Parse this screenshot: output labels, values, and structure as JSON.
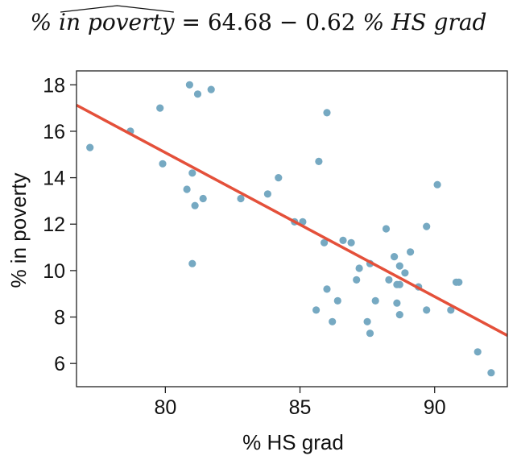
{
  "chart_data": {
    "type": "scatter",
    "title": {
      "lhs_prefix": "% ",
      "lhs_hat": "in poverty",
      "equals": " = ",
      "intercept": "64.68",
      "minus": " − ",
      "slope": "0.62",
      "rhs": " % HS grad"
    },
    "xlabel": "% HS grad",
    "ylabel": "% in poverty",
    "xlim": [
      76.7,
      92.7
    ],
    "ylim": [
      5.0,
      18.6
    ],
    "xticks": [
      80,
      85,
      90
    ],
    "yticks": [
      6,
      8,
      10,
      12,
      14,
      16,
      18
    ],
    "grid": false,
    "regression": {
      "intercept": 64.68,
      "slope": -0.62
    },
    "colors": {
      "points": "#76a9c2",
      "line": "#e4503a"
    },
    "points": [
      {
        "x": 77.2,
        "y": 15.3
      },
      {
        "x": 78.7,
        "y": 16.0
      },
      {
        "x": 79.8,
        "y": 17.0
      },
      {
        "x": 79.9,
        "y": 14.6
      },
      {
        "x": 80.9,
        "y": 18.0
      },
      {
        "x": 81.2,
        "y": 17.6
      },
      {
        "x": 81.7,
        "y": 17.8
      },
      {
        "x": 80.8,
        "y": 13.5
      },
      {
        "x": 81.0,
        "y": 14.2
      },
      {
        "x": 81.1,
        "y": 12.8
      },
      {
        "x": 81.4,
        "y": 13.1
      },
      {
        "x": 81.0,
        "y": 10.3
      },
      {
        "x": 82.8,
        "y": 13.1
      },
      {
        "x": 83.8,
        "y": 13.3
      },
      {
        "x": 84.2,
        "y": 14.0
      },
      {
        "x": 84.8,
        "y": 12.1
      },
      {
        "x": 85.1,
        "y": 12.1
      },
      {
        "x": 85.7,
        "y": 14.7
      },
      {
        "x": 86.0,
        "y": 16.8
      },
      {
        "x": 85.9,
        "y": 11.2
      },
      {
        "x": 86.0,
        "y": 9.2
      },
      {
        "x": 85.6,
        "y": 8.3
      },
      {
        "x": 86.2,
        "y": 7.8
      },
      {
        "x": 86.4,
        "y": 8.7
      },
      {
        "x": 86.6,
        "y": 11.3
      },
      {
        "x": 86.9,
        "y": 11.2
      },
      {
        "x": 87.1,
        "y": 9.6
      },
      {
        "x": 87.2,
        "y": 10.1
      },
      {
        "x": 87.6,
        "y": 10.3
      },
      {
        "x": 87.8,
        "y": 8.7
      },
      {
        "x": 87.5,
        "y": 7.8
      },
      {
        "x": 87.6,
        "y": 7.3
      },
      {
        "x": 88.2,
        "y": 11.8
      },
      {
        "x": 88.3,
        "y": 9.6
      },
      {
        "x": 88.5,
        "y": 10.6
      },
      {
        "x": 88.6,
        "y": 9.4
      },
      {
        "x": 88.7,
        "y": 10.2
      },
      {
        "x": 88.6,
        "y": 8.6
      },
      {
        "x": 88.7,
        "y": 8.1
      },
      {
        "x": 88.9,
        "y": 9.9
      },
      {
        "x": 89.1,
        "y": 10.8
      },
      {
        "x": 88.7,
        "y": 9.4
      },
      {
        "x": 89.4,
        "y": 9.3
      },
      {
        "x": 89.7,
        "y": 11.9
      },
      {
        "x": 89.7,
        "y": 8.3
      },
      {
        "x": 90.1,
        "y": 13.7
      },
      {
        "x": 90.6,
        "y": 8.3
      },
      {
        "x": 90.8,
        "y": 9.5
      },
      {
        "x": 90.9,
        "y": 9.5
      },
      {
        "x": 91.6,
        "y": 6.5
      },
      {
        "x": 92.1,
        "y": 5.6
      }
    ]
  }
}
